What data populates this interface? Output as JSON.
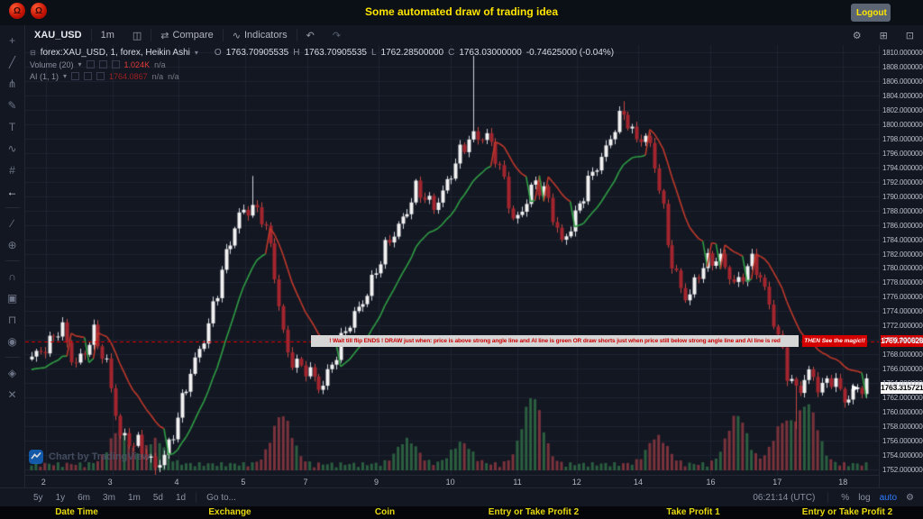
{
  "titlebar": {
    "title": "Some automated draw of trading idea",
    "logout_label": "Logout"
  },
  "toolbar": {
    "symbol": "XAU_USD",
    "interval": "1m",
    "compare_label": "Compare",
    "indicators_label": "Indicators"
  },
  "icons": {
    "caret": "▾",
    "legend_square": "⊟",
    "candle_style": "◫",
    "compare": "⇄",
    "indicators": "∿",
    "undo": "↶",
    "redo": "↷",
    "gear": "⚙",
    "fullscreen": "⊞",
    "camera": "⊡",
    "app_badge": "Ω"
  },
  "left_toolbar": {
    "items": [
      {
        "name": "crosshair-icon",
        "glyph": "+"
      },
      {
        "name": "trend-line-icon",
        "glyph": "╱"
      },
      {
        "name": "pitchfork-icon",
        "glyph": "⋔"
      },
      {
        "name": "brush-icon",
        "glyph": "✎"
      },
      {
        "name": "text-icon",
        "glyph": "T"
      },
      {
        "name": "pattern-icon",
        "glyph": "∿"
      },
      {
        "name": "forecast-icon",
        "glyph": "#"
      },
      {
        "name": "back-arrow-icon",
        "glyph": "←",
        "active": true
      },
      "divider",
      {
        "name": "measure-icon",
        "glyph": "∕"
      },
      {
        "name": "zoom-in-icon",
        "glyph": "⊕"
      },
      "divider",
      {
        "name": "magnet-icon",
        "glyph": "∩"
      },
      {
        "name": "drawing-mode-icon",
        "glyph": "▣"
      },
      {
        "name": "lock-icon",
        "glyph": "⊓"
      },
      {
        "name": "hide-drawings-icon",
        "glyph": "◉"
      },
      "divider",
      {
        "name": "object-tree-icon",
        "glyph": "◈"
      },
      {
        "name": "remove-drawings-icon",
        "glyph": "✕"
      }
    ]
  },
  "legend": {
    "series_title": "forex:XAU_USD, 1, forex, Heikin Ashi",
    "ohlc": {
      "o_label": "O",
      "o": "1763.70905535",
      "h_label": "H",
      "h": "1763.70905535",
      "l_label": "L",
      "l": "1762.28500000",
      "c_label": "C",
      "c": "1763.03000000",
      "change": "-0.74625000 (-0.04%)"
    },
    "volume": {
      "label": "Volume (20)",
      "value": "1.024K",
      "na": "n/a"
    },
    "ai": {
      "label": "AI (1, 1)",
      "value": "1764.0867",
      "na1": "n/a",
      "na2": "n/a"
    }
  },
  "annotation": {
    "strip_text": "!     Wait till flip ENDS  !   DRAW just when:  price is above strong angle line and AI line is green      OR      draw shorts just when price still below strong angle line and AI line is red",
    "badge_text": "THEN See the magic!!"
  },
  "price_labels": {
    "red_line": "1769.79062812",
    "current": "1763.31572175"
  },
  "watermark": {
    "text": "Chart by TradingView"
  },
  "bottom_toolbar": {
    "ranges": [
      "5y",
      "1y",
      "6m",
      "3m",
      "1m",
      "5d",
      "1d"
    ],
    "goto": "Go to...",
    "clock": "06:21:14 (UTC)",
    "percent": "%",
    "log": "log",
    "auto": "auto"
  },
  "footer_labels": [
    "Date Time",
    "Exchange",
    "Coin",
    "Entry or Take Profit 2",
    "Take Profit 1",
    "Entry or Take Profit 2"
  ],
  "chart_data": {
    "type": "candlestick",
    "symbol": "forex:XAU_USD",
    "style": "Heikin Ashi",
    "interval": "1",
    "y_axis": {
      "min": 1752,
      "max": 1810,
      "tick_step": 2,
      "decimals": 8
    },
    "x_axis": {
      "labels": [
        {
          "t": "2",
          "f": 0.024
        },
        {
          "t": "3",
          "f": 0.102
        },
        {
          "t": "4",
          "f": 0.18
        },
        {
          "t": "5",
          "f": 0.258
        },
        {
          "t": "7",
          "f": 0.331
        },
        {
          "t": "9",
          "f": 0.414
        },
        {
          "t": "10",
          "f": 0.498
        },
        {
          "t": "11",
          "f": 0.577
        },
        {
          "t": "12",
          "f": 0.646
        },
        {
          "t": "14",
          "f": 0.718
        },
        {
          "t": "16",
          "f": 0.803
        },
        {
          "t": "17",
          "f": 0.881
        },
        {
          "t": "18",
          "f": 0.958
        }
      ]
    },
    "red_line": {
      "price": 1769.79062812
    },
    "current_price": 1763.31572175,
    "bars": 190,
    "price_path": [
      [
        0.0,
        1767
      ],
      [
        0.02,
        1770
      ],
      [
        0.035,
        1772
      ],
      [
        0.05,
        1766
      ],
      [
        0.065,
        1769
      ],
      [
        0.072,
        1772
      ],
      [
        0.09,
        1766
      ],
      [
        0.105,
        1757
      ],
      [
        0.125,
        1756
      ],
      [
        0.14,
        1753
      ],
      [
        0.148,
        1752
      ],
      [
        0.165,
        1756
      ],
      [
        0.185,
        1763
      ],
      [
        0.21,
        1772
      ],
      [
        0.232,
        1781
      ],
      [
        0.25,
        1788
      ],
      [
        0.262,
        1789
      ],
      [
        0.275,
        1787
      ],
      [
        0.285,
        1783
      ],
      [
        0.295,
        1776
      ],
      [
        0.305,
        1769
      ],
      [
        0.32,
        1766
      ],
      [
        0.335,
        1765
      ],
      [
        0.345,
        1763.5
      ],
      [
        0.36,
        1767
      ],
      [
        0.385,
        1773
      ],
      [
        0.41,
        1779
      ],
      [
        0.435,
        1785
      ],
      [
        0.46,
        1791
      ],
      [
        0.48,
        1788
      ],
      [
        0.5,
        1793
      ],
      [
        0.515,
        1796
      ],
      [
        0.527,
        1798
      ],
      [
        0.545,
        1799
      ],
      [
        0.56,
        1794
      ],
      [
        0.578,
        1786
      ],
      [
        0.6,
        1792
      ],
      [
        0.615,
        1790
      ],
      [
        0.635,
        1784
      ],
      [
        0.655,
        1788
      ],
      [
        0.675,
        1794
      ],
      [
        0.7,
        1800
      ],
      [
        0.71,
        1801
      ],
      [
        0.722,
        1798
      ],
      [
        0.737,
        1799
      ],
      [
        0.75,
        1792
      ],
      [
        0.765,
        1781
      ],
      [
        0.785,
        1776
      ],
      [
        0.805,
        1780
      ],
      [
        0.825,
        1782
      ],
      [
        0.845,
        1777
      ],
      [
        0.862,
        1781
      ],
      [
        0.875,
        1779
      ],
      [
        0.89,
        1772
      ],
      [
        0.905,
        1765
      ],
      [
        0.917,
        1763
      ],
      [
        0.93,
        1766
      ],
      [
        0.945,
        1762.5
      ],
      [
        0.96,
        1765
      ],
      [
        0.975,
        1762
      ],
      [
        1.0,
        1763.3
      ]
    ],
    "wick_events": [
      {
        "t": 0.527,
        "p": 1809.5
      },
      {
        "t": 0.148,
        "p": 1750.3
      },
      {
        "t": 0.917,
        "p": 1757.6
      },
      {
        "t": 0.262,
        "p": 1792.8
      },
      {
        "t": 0.71,
        "p": 1803.2
      }
    ],
    "volume_clusters": [
      {
        "t": 0.105,
        "a": 2.2
      },
      {
        "t": 0.148,
        "a": 1.6
      },
      {
        "t": 0.3,
        "a": 3.2
      },
      {
        "t": 0.45,
        "a": 1.6
      },
      {
        "t": 0.515,
        "a": 1.4
      },
      {
        "t": 0.6,
        "a": 4.4
      },
      {
        "t": 0.75,
        "a": 1.8
      },
      {
        "t": 0.845,
        "a": 3.2
      },
      {
        "t": 0.9,
        "a": 2.6
      },
      {
        "t": 0.93,
        "a": 3.8
      }
    ],
    "colors": {
      "bg": "#131722",
      "grid": "#1d2330",
      "up_body": "#f2f2f2",
      "up_wick": "#cfd3dc",
      "down_body": "#a4252e",
      "down_wick": "#c24840",
      "ai_up": "#2f9e44",
      "ai_down": "#c0392b",
      "red_line": "#e00000",
      "vol_up": "#2b5f40",
      "vol_down": "#7a333c"
    }
  }
}
